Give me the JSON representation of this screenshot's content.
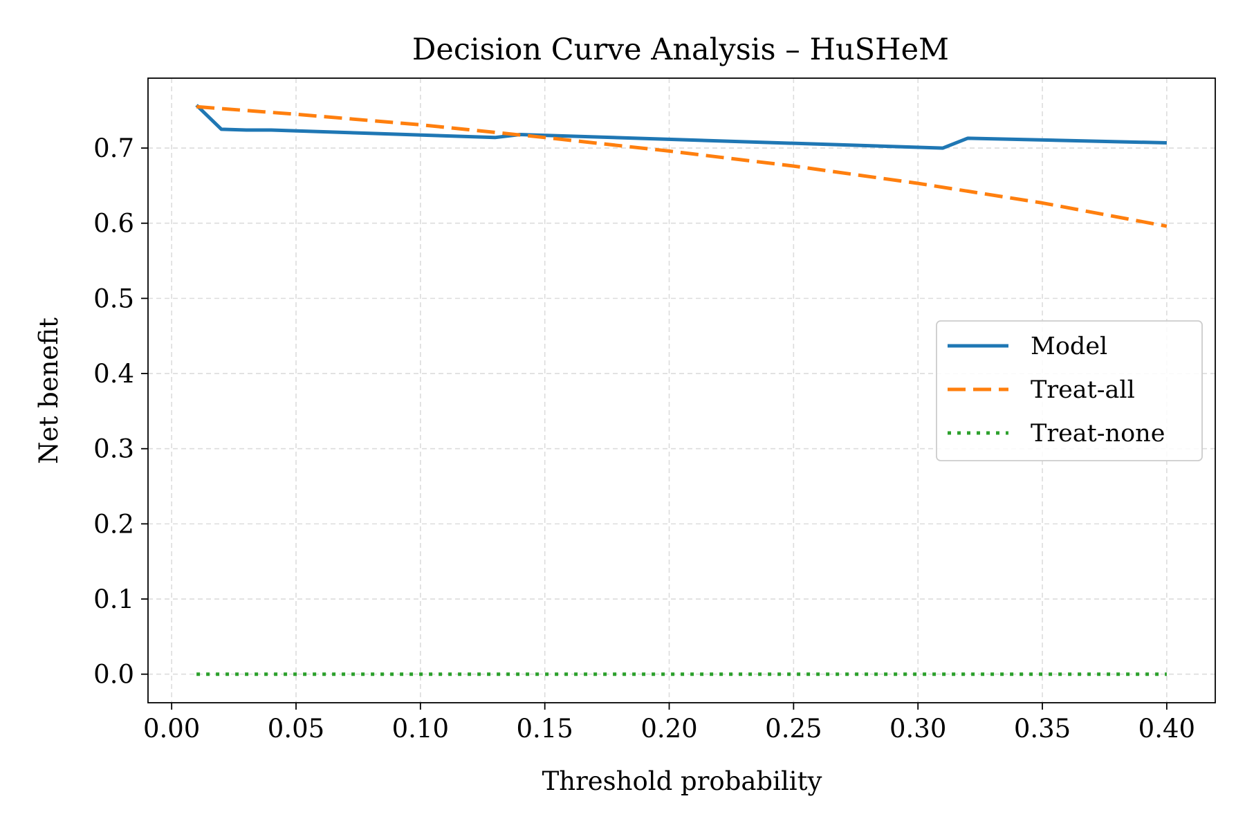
{
  "chart_data": {
    "type": "line",
    "title": "Decision Curve Analysis – HuSHeM",
    "xlabel": "Threshold probability",
    "ylabel": "Net benefit",
    "xlim": [
      -0.0095,
      0.4195
    ],
    "ylim": [
      -0.038,
      0.793
    ],
    "xticks": [
      0.0,
      0.05,
      0.1,
      0.15,
      0.2,
      0.25,
      0.3,
      0.35,
      0.4
    ],
    "xtick_labels": [
      "0.00",
      "0.05",
      "0.10",
      "0.15",
      "0.20",
      "0.25",
      "0.30",
      "0.35",
      "0.40"
    ],
    "yticks": [
      0.0,
      0.1,
      0.2,
      0.3,
      0.4,
      0.5,
      0.6,
      0.7
    ],
    "ytick_labels": [
      "0.0",
      "0.1",
      "0.2",
      "0.3",
      "0.4",
      "0.5",
      "0.6",
      "0.7"
    ],
    "grid": true,
    "legend_position": "center-right",
    "series": [
      {
        "name": "Model",
        "color": "#1f77b4",
        "style": "solid",
        "x": [
          0.01,
          0.02,
          0.03,
          0.04,
          0.13,
          0.14,
          0.31,
          0.32,
          0.4
        ],
        "y": [
          0.757,
          0.725,
          0.724,
          0.724,
          0.714,
          0.718,
          0.7,
          0.713,
          0.707
        ]
      },
      {
        "name": "Treat-all",
        "color": "#ff7f0e",
        "style": "dashed",
        "x": [
          0.01,
          0.05,
          0.1,
          0.15,
          0.2,
          0.25,
          0.3,
          0.35,
          0.4
        ],
        "y": [
          0.755,
          0.745,
          0.731,
          0.714,
          0.696,
          0.676,
          0.653,
          0.627,
          0.596
        ]
      },
      {
        "name": "Treat-none",
        "color": "#2ca02c",
        "style": "dotted",
        "x": [
          0.01,
          0.4
        ],
        "y": [
          0.0,
          0.0
        ]
      }
    ]
  }
}
